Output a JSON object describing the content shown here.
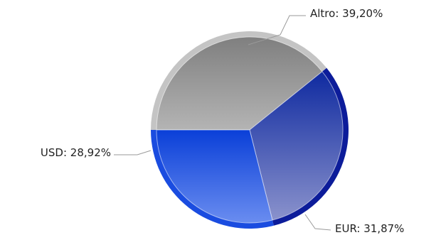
{
  "chart_data": {
    "type": "pie",
    "title": "",
    "legend": "none",
    "slices": [
      {
        "label": "Altro: 39,20%",
        "name": "Altro",
        "value": 39.2,
        "color": "#9c9c9c"
      },
      {
        "label": "EUR: 31,87%",
        "name": "EUR",
        "value": 31.87,
        "color": "#1a2fa8"
      },
      {
        "label": "USD: 28,92%",
        "name": "USD",
        "value": 28.92,
        "color": "#1c4fe0"
      }
    ]
  }
}
